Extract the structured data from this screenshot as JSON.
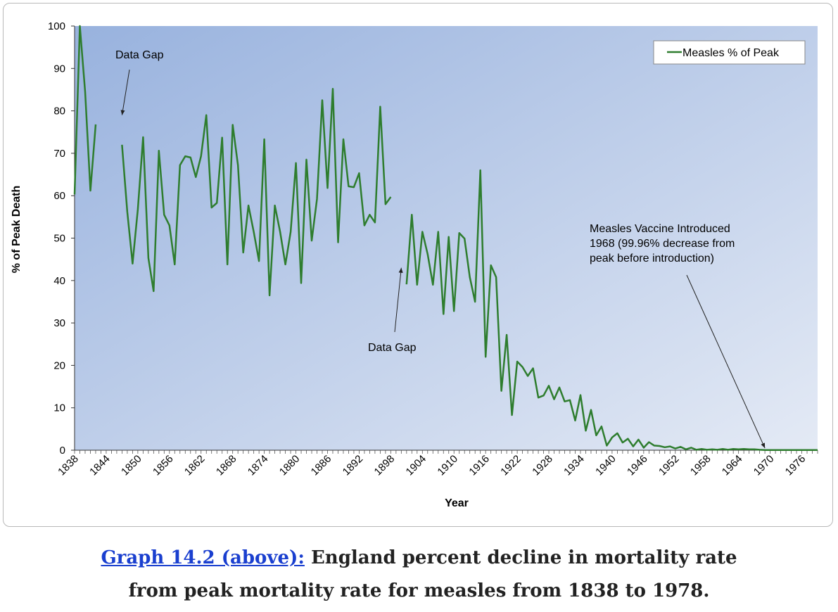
{
  "caption": {
    "link_text": "Graph 14.2 (above):",
    "line1": " England percent decline in mortality rate",
    "line2": "from peak mortality rate for measles from 1838 to 1978."
  },
  "colors": {
    "series": "#2e7d2e",
    "plot_bg_from": "#98b2de",
    "plot_bg_to": "#e4eaf5",
    "caption_link": "#1a3fcf"
  },
  "chart_data": {
    "type": "line",
    "xlabel": "Year",
    "ylabel": "% of Peak Death",
    "xlim": [
      1838,
      1979
    ],
    "ylim": [
      0,
      100
    ],
    "y_ticks": [
      0,
      10,
      20,
      30,
      40,
      50,
      60,
      70,
      80,
      90,
      100
    ],
    "x_tick_labels": [
      1838,
      1844,
      1850,
      1856,
      1862,
      1868,
      1874,
      1880,
      1886,
      1892,
      1898,
      1904,
      1910,
      1916,
      1922,
      1928,
      1934,
      1940,
      1946,
      1952,
      1958,
      1964,
      1970,
      1976
    ],
    "legend": {
      "position": "top-right",
      "label": "Measles % of Peak"
    },
    "annotations": [
      {
        "text": "Data Gap",
        "x": 1847,
        "y": 79
      },
      {
        "text": "Data Gap",
        "x": 1900,
        "y": 43
      },
      {
        "text": [
          "Measles Vaccine Introduced",
          "1968 (99.96% decrease from",
          "peak before introduction)"
        ],
        "x": 1969,
        "y": 0.5
      }
    ],
    "series": [
      {
        "name": "Measles % of Peak",
        "segments": [
          [
            [
              1838,
              60.3
            ],
            [
              1839,
              100
            ],
            [
              1840,
              84.5
            ],
            [
              1841,
              61.2
            ],
            [
              1842,
              76.8
            ]
          ],
          [
            [
              1847,
              72
            ],
            [
              1848,
              56.2
            ],
            [
              1849,
              44
            ],
            [
              1850,
              56.8
            ],
            [
              1851,
              73.8
            ],
            [
              1852,
              45.3
            ],
            [
              1853,
              37.5
            ],
            [
              1854,
              70.6
            ],
            [
              1855,
              55.5
            ],
            [
              1856,
              53
            ],
            [
              1857,
              43.8
            ],
            [
              1858,
              67.2
            ],
            [
              1859,
              69.3
            ],
            [
              1860,
              69
            ],
            [
              1861,
              64.4
            ],
            [
              1862,
              69.3
            ],
            [
              1863,
              79
            ],
            [
              1864,
              57.2
            ],
            [
              1865,
              58.3
            ],
            [
              1866,
              73.7
            ],
            [
              1867,
              43.8
            ],
            [
              1868,
              76.7
            ],
            [
              1869,
              67.2
            ],
            [
              1870,
              46.6
            ],
            [
              1871,
              57.7
            ],
            [
              1872,
              51.5
            ],
            [
              1873,
              44.6
            ],
            [
              1874,
              73.3
            ],
            [
              1875,
              36.5
            ],
            [
              1876,
              57.7
            ],
            [
              1877,
              51.5
            ],
            [
              1878,
              43.8
            ],
            [
              1879,
              51.5
            ],
            [
              1880,
              67.7
            ],
            [
              1881,
              39.4
            ],
            [
              1882,
              68.5
            ],
            [
              1883,
              49.4
            ],
            [
              1884,
              59.2
            ],
            [
              1885,
              82.5
            ],
            [
              1886,
              61.8
            ],
            [
              1887,
              85.2
            ],
            [
              1888,
              49
            ],
            [
              1889,
              73.3
            ],
            [
              1890,
              62.2
            ],
            [
              1891,
              62
            ],
            [
              1892,
              65.3
            ],
            [
              1893,
              53
            ],
            [
              1894,
              55.5
            ],
            [
              1895,
              53.7
            ],
            [
              1896,
              81
            ],
            [
              1897,
              58
            ],
            [
              1898,
              59.7
            ]
          ],
          [
            [
              1901,
              39.1
            ],
            [
              1902,
              55.5
            ],
            [
              1903,
              39
            ],
            [
              1904,
              51.5
            ],
            [
              1905,
              46.2
            ],
            [
              1906,
              39
            ],
            [
              1907,
              51.5
            ],
            [
              1908,
              32.1
            ],
            [
              1909,
              50.3
            ],
            [
              1910,
              32.8
            ],
            [
              1911,
              51.2
            ],
            [
              1912,
              49.9
            ],
            [
              1913,
              40.8
            ],
            [
              1914,
              35
            ],
            [
              1915,
              66
            ],
            [
              1916,
              22
            ],
            [
              1917,
              43.6
            ],
            [
              1918,
              40.8
            ],
            [
              1919,
              14
            ],
            [
              1920,
              27.2
            ],
            [
              1921,
              8.3
            ],
            [
              1922,
              20.9
            ],
            [
              1923,
              19.6
            ],
            [
              1924,
              17.5
            ],
            [
              1925,
              19.3
            ],
            [
              1926,
              12.4
            ],
            [
              1927,
              12.9
            ],
            [
              1928,
              15.2
            ],
            [
              1929,
              12
            ],
            [
              1930,
              14.8
            ],
            [
              1931,
              11.5
            ],
            [
              1932,
              11.8
            ],
            [
              1933,
              7
            ],
            [
              1934,
              13
            ],
            [
              1935,
              4.6
            ],
            [
              1936,
              9.5
            ],
            [
              1937,
              3.5
            ],
            [
              1938,
              5.6
            ],
            [
              1939,
              1.1
            ],
            [
              1940,
              3
            ],
            [
              1941,
              4
            ],
            [
              1942,
              1.8
            ],
            [
              1943,
              2.7
            ],
            [
              1944,
              0.9
            ],
            [
              1945,
              2.5
            ],
            [
              1946,
              0.6
            ],
            [
              1947,
              1.9
            ],
            [
              1948,
              1.1
            ],
            [
              1949,
              1
            ],
            [
              1950,
              0.7
            ],
            [
              1951,
              0.9
            ],
            [
              1952,
              0.4
            ],
            [
              1953,
              0.8
            ],
            [
              1954,
              0.2
            ],
            [
              1955,
              0.6
            ],
            [
              1956,
              0.1
            ],
            [
              1957,
              0.3
            ],
            [
              1958,
              0.1
            ],
            [
              1959,
              0.2
            ],
            [
              1960,
              0.1
            ],
            [
              1961,
              0.3
            ],
            [
              1962,
              0.1
            ],
            [
              1963,
              0.3
            ],
            [
              1964,
              0.2
            ],
            [
              1965,
              0.3
            ],
            [
              1966,
              0.2
            ],
            [
              1967,
              0.2
            ],
            [
              1968,
              0.1
            ],
            [
              1969,
              0.05
            ],
            [
              1970,
              0.05
            ],
            [
              1971,
              0.05
            ],
            [
              1972,
              0.04
            ],
            [
              1973,
              0.04
            ],
            [
              1974,
              0.04
            ],
            [
              1975,
              0.04
            ],
            [
              1976,
              0.04
            ],
            [
              1977,
              0.04
            ],
            [
              1978,
              0.04
            ],
            [
              1979,
              0.04
            ]
          ]
        ]
      }
    ]
  }
}
